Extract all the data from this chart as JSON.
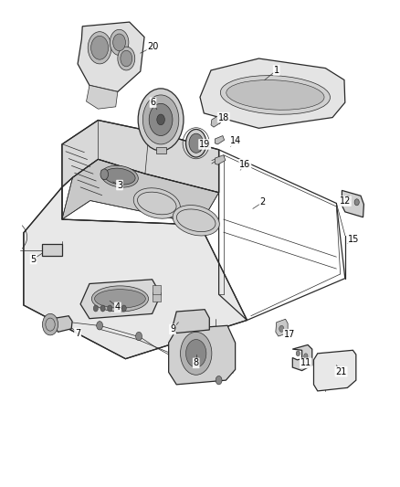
{
  "background_color": "#ffffff",
  "line_color": "#2a2a2a",
  "label_color": "#000000",
  "fig_width": 4.38,
  "fig_height": 5.33,
  "dpi": 100,
  "lw_main": 0.9,
  "lw_thin": 0.5,
  "lw_thick": 1.3,
  "label_fontsize": 7.0,
  "labels": [
    {
      "id": "1",
      "xt": 0.695,
      "yt": 0.858,
      "xp": 0.665,
      "yp": 0.84
    },
    {
      "id": "2",
      "xt": 0.66,
      "yt": 0.612,
      "xp": 0.635,
      "yp": 0.6
    },
    {
      "id": "3",
      "xt": 0.295,
      "yt": 0.644,
      "xp": 0.278,
      "yp": 0.65
    },
    {
      "id": "4",
      "xt": 0.29,
      "yt": 0.416,
      "xp": 0.27,
      "yp": 0.428
    },
    {
      "id": "5",
      "xt": 0.075,
      "yt": 0.506,
      "xp": 0.098,
      "yp": 0.517
    },
    {
      "id": "6",
      "xt": 0.38,
      "yt": 0.798,
      "xp": 0.39,
      "yp": 0.785
    },
    {
      "id": "7",
      "xt": 0.188,
      "yt": 0.368,
      "xp": 0.172,
      "yp": 0.378
    },
    {
      "id": "8",
      "xt": 0.49,
      "yt": 0.312,
      "xp": 0.49,
      "yp": 0.328
    },
    {
      "id": "9",
      "xt": 0.43,
      "yt": 0.375,
      "xp": 0.445,
      "yp": 0.388
    },
    {
      "id": "11",
      "xt": 0.77,
      "yt": 0.312,
      "xp": 0.76,
      "yp": 0.322
    },
    {
      "id": "12",
      "xt": 0.87,
      "yt": 0.614,
      "xp": 0.855,
      "yp": 0.606
    },
    {
      "id": "14",
      "xt": 0.59,
      "yt": 0.726,
      "xp": 0.578,
      "yp": 0.716
    },
    {
      "id": "15",
      "xt": 0.892,
      "yt": 0.542,
      "xp": 0.876,
      "yp": 0.535
    },
    {
      "id": "16",
      "xt": 0.615,
      "yt": 0.683,
      "xp": 0.603,
      "yp": 0.672
    },
    {
      "id": "17",
      "xt": 0.728,
      "yt": 0.366,
      "xp": 0.715,
      "yp": 0.374
    },
    {
      "id": "18",
      "xt": 0.56,
      "yt": 0.77,
      "xp": 0.55,
      "yp": 0.758
    },
    {
      "id": "19",
      "xt": 0.512,
      "yt": 0.72,
      "xp": 0.5,
      "yp": 0.706
    },
    {
      "id": "20",
      "xt": 0.38,
      "yt": 0.902,
      "xp": 0.348,
      "yp": 0.89
    },
    {
      "id": "21",
      "xt": 0.86,
      "yt": 0.296,
      "xp": 0.848,
      "yp": 0.308
    }
  ]
}
